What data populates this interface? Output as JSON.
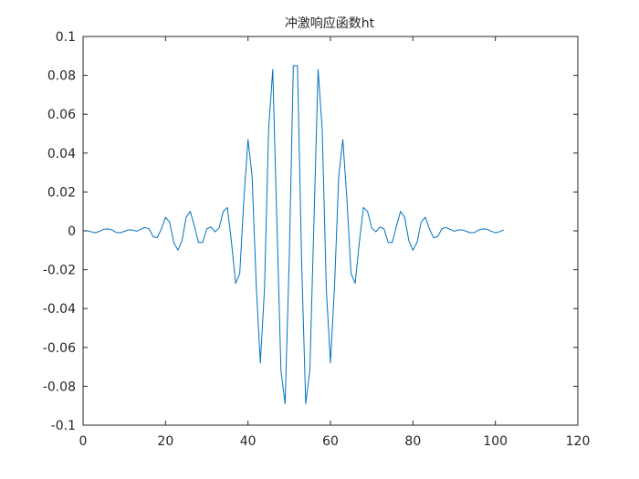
{
  "chart_data": {
    "type": "line",
    "title": "冲激响应函数ht",
    "xlabel": "",
    "ylabel": "",
    "xlim": [
      0,
      120
    ],
    "ylim": [
      -0.1,
      0.1
    ],
    "x_ticks": [
      0,
      20,
      40,
      60,
      80,
      100,
      120
    ],
    "x_tick_labels": [
      "0",
      "20",
      "40",
      "60",
      "80",
      "100",
      "120"
    ],
    "y_ticks": [
      -0.1,
      -0.08,
      -0.06,
      -0.04,
      -0.02,
      0,
      0.02,
      0.04,
      0.06,
      0.08,
      0.1
    ],
    "y_tick_labels": [
      "-0.1",
      "-0.08",
      "-0.06",
      "-0.04",
      "-0.02",
      "0",
      "0.02",
      "0.04",
      "0.06",
      "0.08",
      "0.1"
    ],
    "grid": false,
    "series": [
      {
        "color": "#0072bd",
        "x": [
          1,
          2,
          3,
          4,
          5,
          6,
          7,
          8,
          9,
          10,
          11,
          12,
          13,
          14,
          15,
          16,
          17,
          18,
          19,
          20,
          21,
          22,
          23,
          24,
          25,
          26,
          27,
          28,
          29,
          30,
          31,
          32,
          33,
          34,
          35,
          36,
          37,
          38,
          39,
          40,
          41,
          42,
          43,
          44,
          45,
          46,
          47,
          48,
          49,
          50,
          51,
          52,
          53,
          54,
          55,
          56,
          57,
          58,
          59,
          60,
          61,
          62,
          63,
          64,
          65,
          66,
          67,
          68,
          69,
          70,
          71,
          72,
          73,
          74,
          75,
          76,
          77,
          78,
          79,
          80,
          81,
          82,
          83,
          84,
          85,
          86,
          87,
          88,
          89,
          90,
          91,
          92,
          93,
          94,
          95,
          96,
          97,
          98,
          99,
          100,
          101,
          102
        ],
        "y": [
          0.0,
          -0.0005,
          -0.001,
          -0.0002,
          0.0008,
          0.001,
          0.0005,
          -0.0008,
          -0.001,
          -0.0003,
          0.0005,
          0.0004,
          -0.0002,
          0.0008,
          0.0018,
          0.001,
          -0.003,
          -0.0035,
          0.001,
          0.007,
          0.0045,
          -0.006,
          -0.01,
          -0.005,
          0.007,
          0.01,
          0.0025,
          -0.006,
          -0.006,
          0.001,
          0.002,
          -0.0005,
          0.0015,
          0.01,
          0.012,
          -0.006,
          -0.027,
          -0.022,
          0.016,
          0.047,
          0.028,
          -0.028,
          -0.068,
          -0.03,
          0.052,
          0.083,
          0.005,
          -0.072,
          -0.089,
          -0.015,
          0.085,
          0.085,
          -0.015,
          -0.089,
          -0.072,
          0.005,
          0.083,
          0.052,
          -0.03,
          -0.068,
          -0.028,
          0.028,
          0.047,
          0.016,
          -0.022,
          -0.027,
          -0.006,
          0.012,
          0.01,
          0.0015,
          -0.0005,
          0.002,
          0.001,
          -0.006,
          -0.006,
          0.0025,
          0.01,
          0.007,
          -0.005,
          -0.01,
          -0.006,
          0.0045,
          0.007,
          0.001,
          -0.0035,
          -0.003,
          0.001,
          0.0018,
          0.0008,
          -0.0002,
          0.0004,
          0.0005,
          -0.0003,
          -0.001,
          -0.0008,
          0.0005,
          0.001,
          0.0008,
          -0.0002,
          -0.001,
          -0.0005,
          0.0005
        ]
      }
    ]
  }
}
